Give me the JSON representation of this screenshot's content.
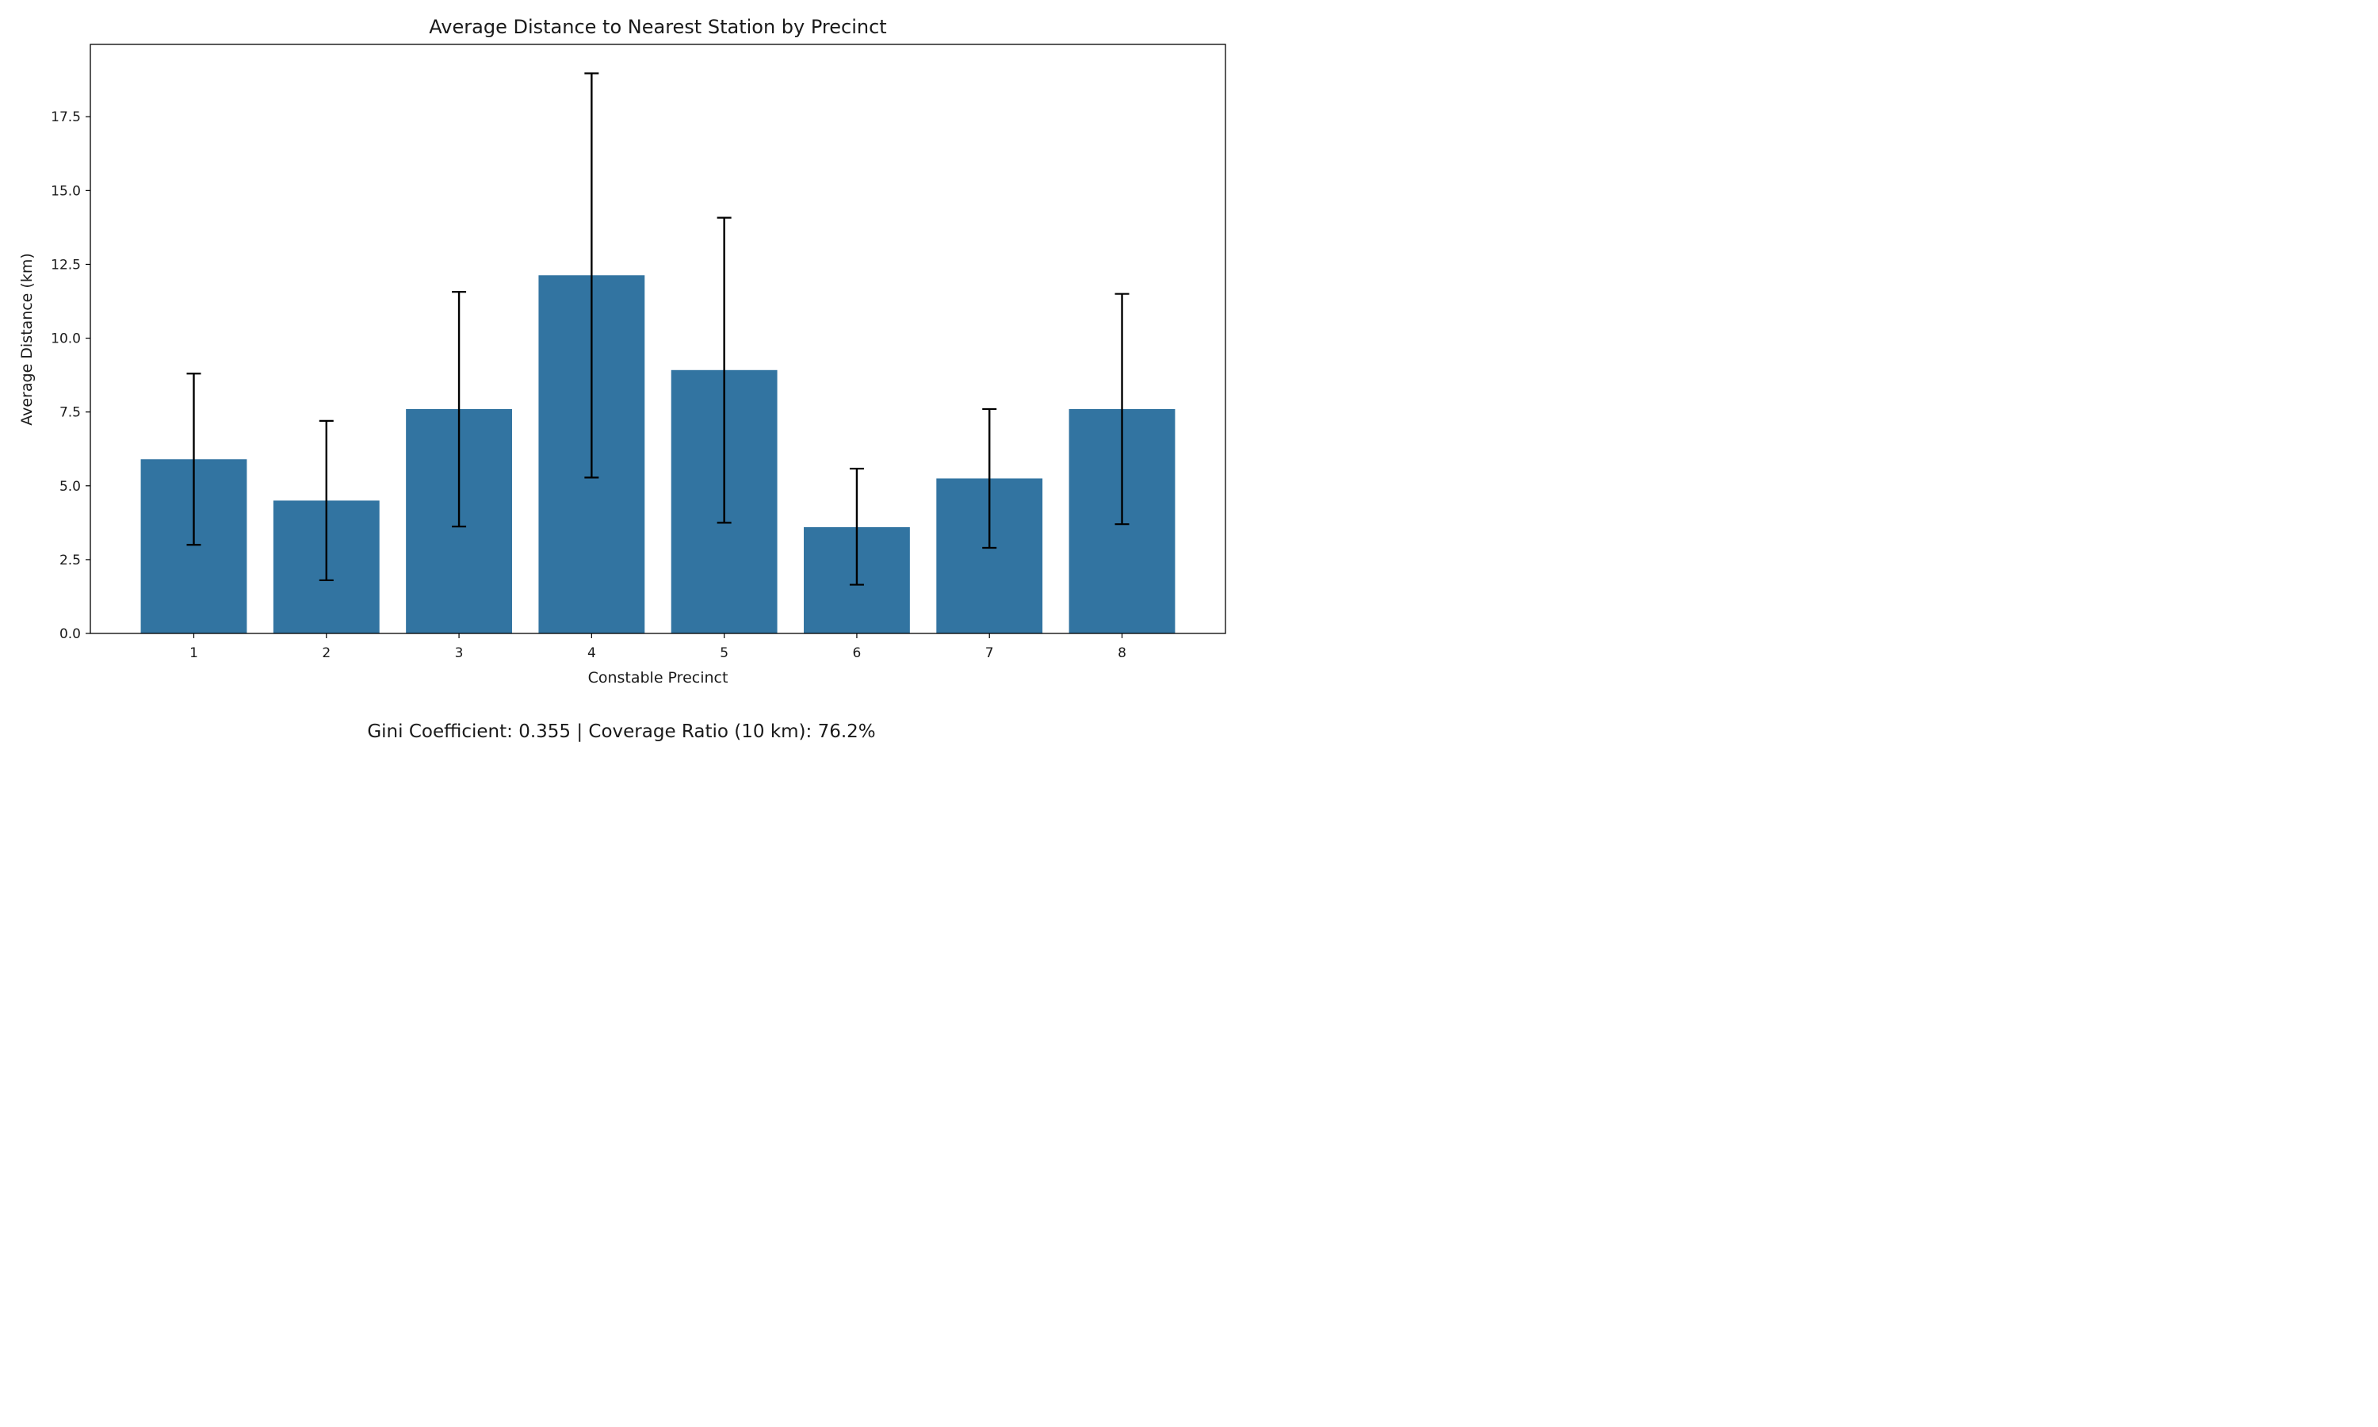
{
  "chart_data": {
    "type": "bar",
    "title": "Average Distance to Nearest Station by Precinct",
    "xlabel": "Constable Precinct",
    "ylabel": "Average Distance (km)",
    "categories": [
      "1",
      "2",
      "3",
      "4",
      "5",
      "6",
      "7",
      "8"
    ],
    "values": [
      5.9,
      4.5,
      7.6,
      12.13,
      8.92,
      3.6,
      5.25,
      7.6
    ],
    "error_low": [
      3.0,
      1.8,
      3.62,
      5.28,
      3.75,
      1.65,
      2.9,
      3.7
    ],
    "error_high": [
      8.8,
      7.2,
      11.57,
      18.97,
      14.08,
      5.58,
      7.6,
      11.5
    ],
    "ylim": [
      0,
      19.95
    ],
    "yticks": [
      0.0,
      2.5,
      5.0,
      7.5,
      10.0,
      12.5,
      15.0,
      17.5
    ],
    "ytick_labels": [
      "0.0",
      "2.5",
      "5.0",
      "7.5",
      "10.0",
      "12.5",
      "15.0",
      "17.5"
    ],
    "grid": false,
    "legend": "none",
    "bar_color": "#3274a1",
    "error_color": "#000000"
  },
  "footnote": "Gini Coefficient: 0.355 | Coverage Ratio (10 km): 76.2%"
}
